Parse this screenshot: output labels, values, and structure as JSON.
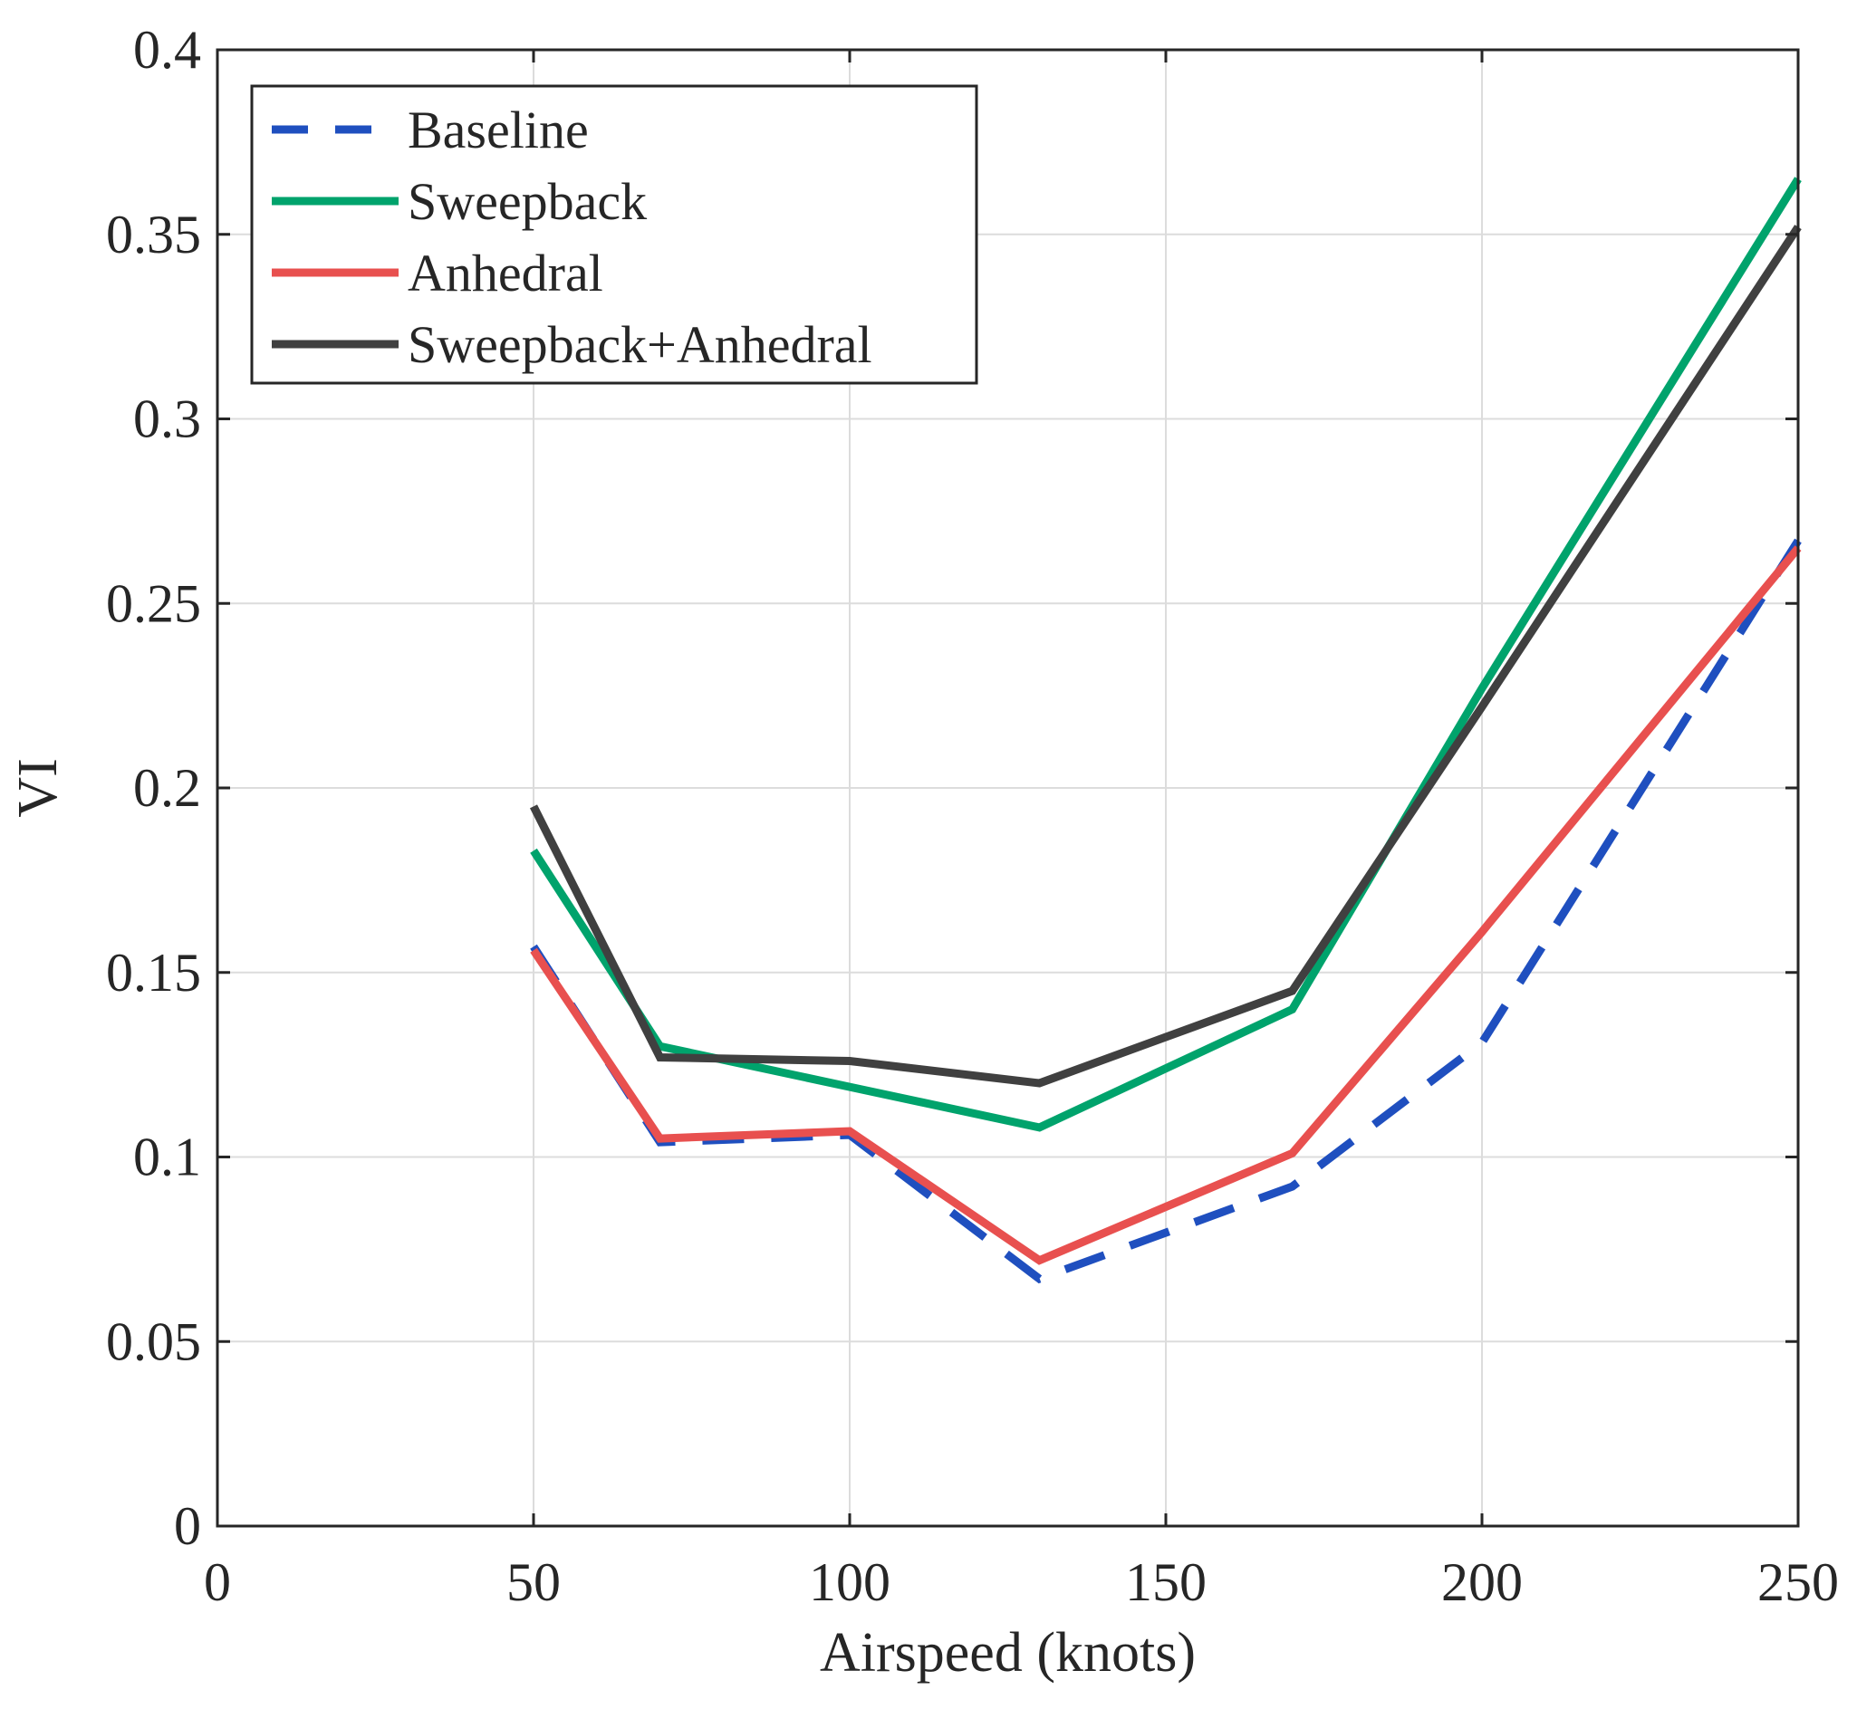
{
  "chart_data": {
    "type": "line",
    "title": "",
    "xlabel": "Airspeed (knots)",
    "ylabel": "VI",
    "xlim": [
      0,
      250
    ],
    "ylim": [
      0,
      0.4
    ],
    "xticks": [
      0,
      50,
      100,
      150,
      200,
      250
    ],
    "xtick_labels": [
      "0",
      "50",
      "100",
      "150",
      "200",
      "250"
    ],
    "yticks": [
      0,
      0.05,
      0.1,
      0.15,
      0.2,
      0.25,
      0.3,
      0.35,
      0.4
    ],
    "ytick_labels": [
      "0",
      "0.05",
      "0.1",
      "0.15",
      "0.2",
      "0.25",
      "0.3",
      "0.35",
      "0.4"
    ],
    "grid": true,
    "legend_position": "top-left",
    "x": [
      50,
      70,
      100,
      130,
      170,
      200,
      250
    ],
    "series": [
      {
        "name": "Baseline",
        "color": "#1f4fbf",
        "style": "dashed",
        "values": [
          0.157,
          0.104,
          0.106,
          0.067,
          0.092,
          0.131,
          0.267
        ]
      },
      {
        "name": "Sweepback",
        "color": "#00a36c",
        "style": "solid",
        "values": [
          0.183,
          0.13,
          0.119,
          0.108,
          0.14,
          0.227,
          0.365
        ]
      },
      {
        "name": "Anhedral",
        "color": "#e8504f",
        "style": "solid",
        "values": [
          0.156,
          0.105,
          0.107,
          0.072,
          0.101,
          0.161,
          0.265
        ]
      },
      {
        "name": "Sweepback+Anhedral",
        "color": "#404040",
        "style": "solid",
        "values": [
          0.195,
          0.127,
          0.126,
          0.12,
          0.145,
          0.222,
          0.352
        ]
      }
    ]
  }
}
